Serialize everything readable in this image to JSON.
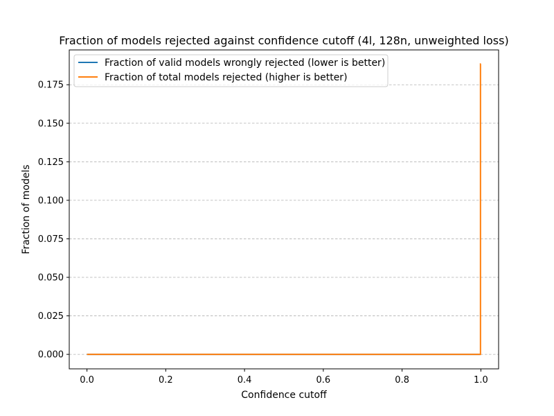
{
  "chart_data": {
    "type": "line",
    "title": "Fraction of models rejected against confidence cutoff (4l, 128n, unweighted loss)",
    "xlabel": "Confidence cutoff",
    "ylabel": "Fraction of models",
    "xlim": [
      -0.045,
      1.045
    ],
    "ylim": [
      -0.0094,
      0.1976
    ],
    "x_ticks": [
      0.0,
      0.2,
      0.4,
      0.6,
      0.8,
      1.0
    ],
    "x_tick_labels": [
      "0.0",
      "0.2",
      "0.4",
      "0.6",
      "0.8",
      "1.0"
    ],
    "y_ticks": [
      0.0,
      0.025,
      0.05,
      0.075,
      0.1,
      0.125,
      0.15,
      0.175
    ],
    "y_tick_labels": [
      "0.000",
      "0.025",
      "0.050",
      "0.075",
      "0.100",
      "0.125",
      "0.150",
      "0.175"
    ],
    "grid": "y-axis, dashed",
    "legend_position": "upper-left",
    "series": [
      {
        "name": "Fraction of valid models wrongly rejected (lower is better)",
        "color": "#1f77b4",
        "x": [
          0.0,
          0.999,
          0.999
        ],
        "y": [
          0.0,
          0.0,
          0.0
        ]
      },
      {
        "name": "Fraction of total models rejected (higher is better)",
        "color": "#ff7f0e",
        "x": [
          0.0,
          0.999,
          0.999,
          1.0
        ],
        "y": [
          0.0,
          0.0,
          0.1885,
          0.1885
        ]
      }
    ]
  }
}
